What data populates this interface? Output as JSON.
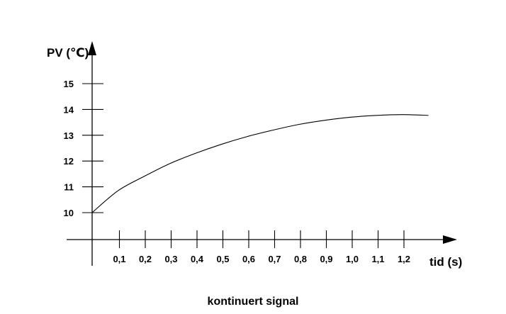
{
  "chart_data": {
    "type": "line",
    "title": "",
    "caption": "kontinuert signal",
    "xlabel": "tid (s)",
    "ylabel": "PV (℃)",
    "xlim": [
      0,
      1.3
    ],
    "ylim": [
      10,
      15
    ],
    "x_ticks": [
      0.1,
      0.2,
      0.3,
      0.4,
      0.5,
      0.6,
      0.7,
      0.8,
      0.9,
      1.0,
      1.1,
      1.2
    ],
    "x_tick_labels": [
      "0,1",
      "0,2",
      "0,3",
      "0,4",
      "0,5",
      "0,6",
      "0,7",
      "0,8",
      "0,9",
      "1,0",
      "1,1",
      "1,2"
    ],
    "y_ticks": [
      10,
      11,
      12,
      13,
      14,
      15
    ],
    "y_tick_labels": [
      "10",
      "11",
      "12",
      "13",
      "14",
      "15"
    ],
    "grid": false,
    "series": [
      {
        "x": [
          0,
          0.1,
          0.2,
          0.3,
          0.4,
          0.5,
          0.6,
          0.7,
          0.8,
          0.9,
          1.0,
          1.1,
          1.2,
          1.3
        ],
        "values": [
          10.0,
          10.85,
          11.4,
          11.9,
          12.3,
          12.65,
          12.95,
          13.2,
          13.42,
          13.58,
          13.7,
          13.77,
          13.8,
          13.77
        ]
      }
    ],
    "colors": {
      "line": "#000000",
      "axis": "#000000"
    }
  }
}
